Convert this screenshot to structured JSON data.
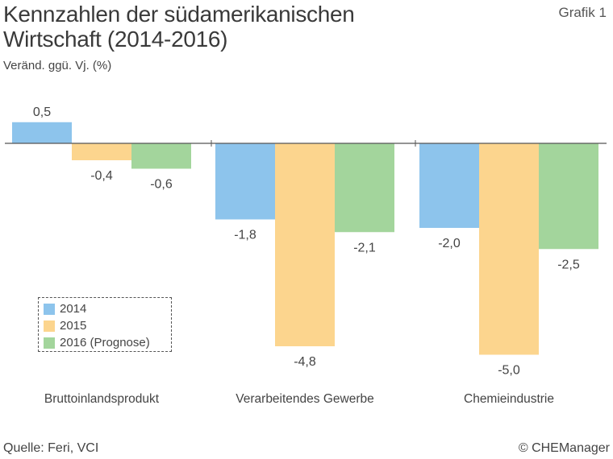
{
  "header": {
    "title_line1": "Kennzahlen der südamerikanischen",
    "title_line2": "Wirtschaft (2014-2016)",
    "subtitle": "Veränd. ggü. Vj. (%)",
    "figure_label": "Grafik 1"
  },
  "footer": {
    "source": "Quelle: Feri, VCI",
    "copyright": "© CHEManager"
  },
  "chart_data": {
    "type": "bar",
    "title": "Kennzahlen der südamerikanischen Wirtschaft (2014-2016)",
    "ylabel": "Veränd. ggü. Vj. (%)",
    "categories": [
      "Bruttoinlandsprodukt",
      "Verarbeitendes Gewerbe",
      "Chemieindustrie"
    ],
    "series": [
      {
        "name": "2014",
        "color": "#8dc4ec",
        "values": [
          0.5,
          -1.8,
          -2.0
        ],
        "labels": [
          "0,5",
          "-1,8",
          "-2,0"
        ]
      },
      {
        "name": "2015",
        "color": "#fcd58e",
        "values": [
          -0.4,
          -4.8,
          -5.0
        ],
        "labels": [
          "-0,4",
          "-4,8",
          "-5,0"
        ]
      },
      {
        "name": "2016 (Prognose)",
        "color": "#a3d59c",
        "values": [
          -0.6,
          -2.1,
          -2.5
        ],
        "labels": [
          "-0,6",
          "-2,1",
          "-2,5"
        ]
      }
    ],
    "ylim": [
      -5.0,
      0.5
    ],
    "grid": false,
    "legend_position": "bottom-left"
  }
}
